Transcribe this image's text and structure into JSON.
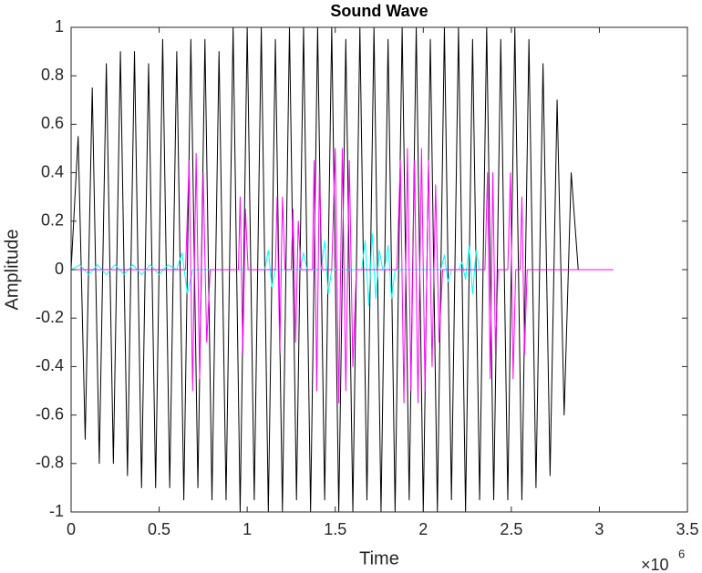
{
  "chart_data": {
    "type": "line",
    "title": "Sound Wave",
    "x_label": "Time",
    "y_label": "Amplitude",
    "x_exponent_base": "×10",
    "x_exponent": "6",
    "xlim": [
      0,
      3500000
    ],
    "xticks": [
      0,
      {
        "value": 500000,
        "label": "0.5"
      },
      {
        "value": 1000000,
        "label": "1"
      },
      {
        "value": 1500000,
        "label": "1.5"
      },
      {
        "value": 2000000,
        "label": "2"
      },
      {
        "value": 2500000,
        "label": "2.5"
      },
      {
        "value": 3000000,
        "label": "3"
      },
      {
        "value": 3500000,
        "label": "3.5"
      }
    ],
    "ylim": [
      -1,
      1
    ],
    "yticks": [
      -1,
      -0.8,
      -0.6,
      -0.4,
      -0.2,
      0,
      0.2,
      0.4,
      0.6,
      0.8,
      1
    ],
    "grid": false,
    "series": [
      {
        "color": "#000000",
        "x": [
          0,
          40000,
          80000,
          120000,
          160000,
          200000,
          240000,
          280000,
          320000,
          360000,
          400000,
          440000,
          480000,
          520000,
          560000,
          600000,
          640000,
          680000,
          720000,
          760000,
          800000,
          840000,
          880000,
          920000,
          960000,
          1000000,
          1040000,
          1080000,
          1120000,
          1160000,
          1200000,
          1240000,
          1280000,
          1320000,
          1360000,
          1400000,
          1440000,
          1480000,
          1520000,
          1560000,
          1600000,
          1640000,
          1680000,
          1720000,
          1760000,
          1800000,
          1840000,
          1880000,
          1920000,
          1960000,
          2000000,
          2040000,
          2080000,
          2120000,
          2160000,
          2200000,
          2240000,
          2280000,
          2320000,
          2360000,
          2400000,
          2440000,
          2480000,
          2520000,
          2560000,
          2600000,
          2640000,
          2680000,
          2720000,
          2760000,
          2800000,
          2840000,
          2880000
        ],
        "values": [
          0,
          0.55,
          -0.7,
          0.75,
          -0.8,
          0.85,
          -0.8,
          0.9,
          -0.85,
          0.9,
          -0.9,
          0.85,
          -0.9,
          0.95,
          -0.9,
          0.9,
          -0.95,
          0.95,
          -0.9,
          0.95,
          -0.95,
          0.9,
          -0.95,
          1,
          -1,
          1,
          -0.95,
          1,
          -1,
          0.95,
          -1,
          1,
          -0.95,
          1,
          -1,
          1,
          -0.95,
          1,
          -1,
          0.95,
          -1,
          1,
          -0.95,
          1,
          -1,
          0.95,
          -1,
          1,
          -0.95,
          1,
          -1,
          0.95,
          -1,
          1,
          -0.95,
          1,
          -1,
          0.95,
          -0.95,
          1,
          -0.95,
          0.95,
          -0.95,
          1,
          -0.95,
          0.95,
          -0.9,
          0.85,
          -0.85,
          0.7,
          -0.6,
          0.4,
          0
        ]
      },
      {
        "color": "#00ffff",
        "x": [
          0,
          50000,
          100000,
          150000,
          200000,
          250000,
          300000,
          350000,
          400000,
          450000,
          500000,
          550000,
          600000,
          630000,
          660000,
          690000,
          1100000,
          1120000,
          1140000,
          1160000,
          1300000,
          1320000,
          1340000,
          1420000,
          1440000,
          1460000,
          1480000,
          1650000,
          1670000,
          1690000,
          1710000,
          1730000,
          1750000,
          1770000,
          1780000,
          1800000,
          1820000,
          1840000,
          2100000,
          2120000,
          2140000,
          2160000,
          2200000,
          2220000,
          2240000,
          2260000,
          2280000,
          2300000,
          2320000,
          2340000
        ],
        "values": [
          0,
          0.02,
          -0.02,
          0.02,
          -0.02,
          0.02,
          -0.02,
          0.02,
          -0.02,
          0.02,
          -0.02,
          0.02,
          0,
          0.07,
          -0.1,
          0,
          0,
          0.08,
          -0.07,
          0,
          0,
          0.07,
          0,
          0,
          0.12,
          -0.1,
          0,
          0,
          0.12,
          -0.15,
          0.15,
          -0.12,
          0.08,
          0,
          0,
          0.1,
          -0.12,
          0,
          0,
          0.06,
          -0.05,
          0,
          0,
          0.03,
          -0.04,
          0.1,
          -0.1,
          0.08,
          0,
          0
        ]
      },
      {
        "color": "#ff00ff",
        "x": [
          0,
          650000,
          670000,
          690000,
          710000,
          730000,
          750000,
          770000,
          790000,
          950000,
          960000,
          975000,
          990000,
          1005000,
          1160000,
          1170000,
          1185000,
          1200000,
          1215000,
          1250000,
          1260000,
          1275000,
          1290000,
          1305000,
          1370000,
          1380000,
          1395000,
          1410000,
          1425000,
          1480000,
          1500000,
          1520000,
          1540000,
          1560000,
          1580000,
          1600000,
          1620000,
          1850000,
          1870000,
          1890000,
          1910000,
          1930000,
          1950000,
          1970000,
          1990000,
          2010000,
          2030000,
          2050000,
          2070000,
          2090000,
          2110000,
          2350000,
          2365000,
          2380000,
          2395000,
          2410000,
          2425000,
          2480000,
          2495000,
          2510000,
          2525000,
          2550000,
          2560000,
          2575000,
          2590000,
          3080000
        ],
        "values": [
          0,
          0,
          0.45,
          -0.5,
          0.48,
          -0.45,
          0.4,
          -0.3,
          0,
          0,
          0.3,
          -0.35,
          0.25,
          0,
          0,
          0.3,
          -0.35,
          0.3,
          0,
          0,
          0.25,
          -0.3,
          0.2,
          0,
          0,
          0.45,
          -0.5,
          0.4,
          0,
          0,
          0.5,
          -0.55,
          0.5,
          -0.5,
          0.45,
          -0.4,
          0,
          0,
          0.45,
          -0.55,
          0.5,
          -0.5,
          0.45,
          -0.55,
          0.5,
          -0.5,
          0.45,
          -0.4,
          0.35,
          -0.3,
          0,
          0,
          0.4,
          -0.45,
          0.4,
          -0.35,
          0,
          0,
          0.4,
          -0.45,
          0,
          0,
          0.3,
          -0.35,
          0,
          0
        ]
      }
    ]
  }
}
